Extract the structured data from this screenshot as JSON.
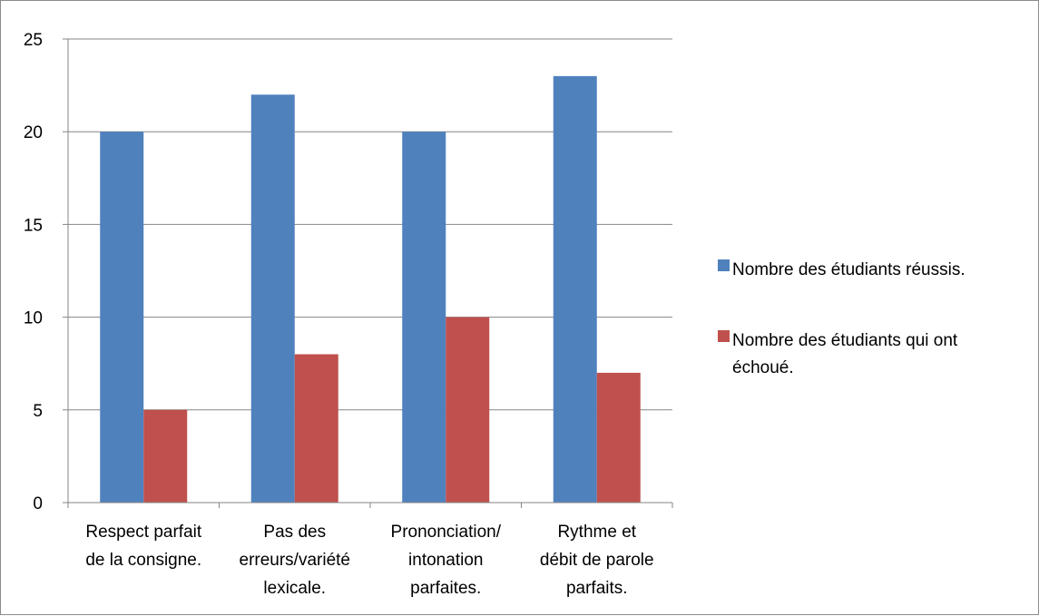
{
  "chart_data": {
    "type": "bar",
    "categories": [
      "Respect parfait de la consigne.",
      "Pas des erreurs/variété lexicale.",
      "Prononciation/ intonation parfaites.",
      "Rythme et débit de parole parfaits."
    ],
    "category_label_lines": [
      [
        "Respect parfait",
        "de la consigne."
      ],
      [
        "Pas des",
        "erreurs/variété",
        "lexicale."
      ],
      [
        "Prononciation/",
        "intonation",
        "parfaites."
      ],
      [
        "Rythme et",
        "débit de parole",
        "parfaits."
      ]
    ],
    "series": [
      {
        "name": "Nombre des étudiants réussis.",
        "values": [
          20,
          22,
          20,
          23
        ],
        "color": "#4F81BD"
      },
      {
        "name": "Nombre des étudiants qui ont échoué.",
        "values": [
          5,
          8,
          10,
          7
        ],
        "color": "#C0504D"
      }
    ],
    "legend_label_lines": [
      [
        "Nombre des étudiants réussis."
      ],
      [
        "Nombre des étudiants qui ont",
        "échoué."
      ]
    ],
    "ylim": [
      0,
      25
    ],
    "y_ticks": [
      0,
      5,
      10,
      15,
      20,
      25
    ],
    "grid": true,
    "legend_position": "right"
  }
}
